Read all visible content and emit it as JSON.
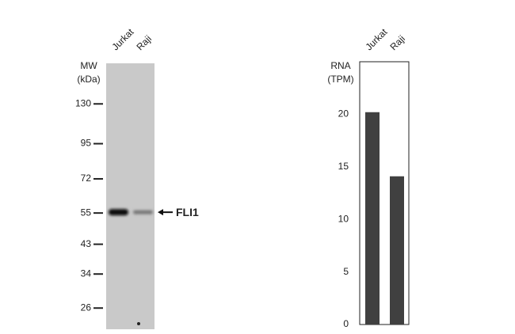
{
  "chart_data": [
    {
      "type": "western-blot",
      "categories": [
        "Jurkat",
        "Raji"
      ],
      "ylabel": [
        "MW",
        "(kDa)"
      ],
      "log_scale": true,
      "ylim": [
        22,
        179
      ],
      "yticks": [
        130,
        95,
        72,
        55,
        43,
        34,
        26
      ],
      "annotation": "FLI1"
    },
    {
      "type": "bar",
      "categories": [
        "Jurkat",
        "Raji"
      ],
      "values": [
        20.2,
        14.1
      ],
      "color": "#404040",
      "ylabel": [
        "RNA",
        "(TPM)"
      ],
      "ylim": [
        0,
        25
      ],
      "yticks": [
        0,
        5,
        10,
        15,
        20
      ]
    }
  ]
}
